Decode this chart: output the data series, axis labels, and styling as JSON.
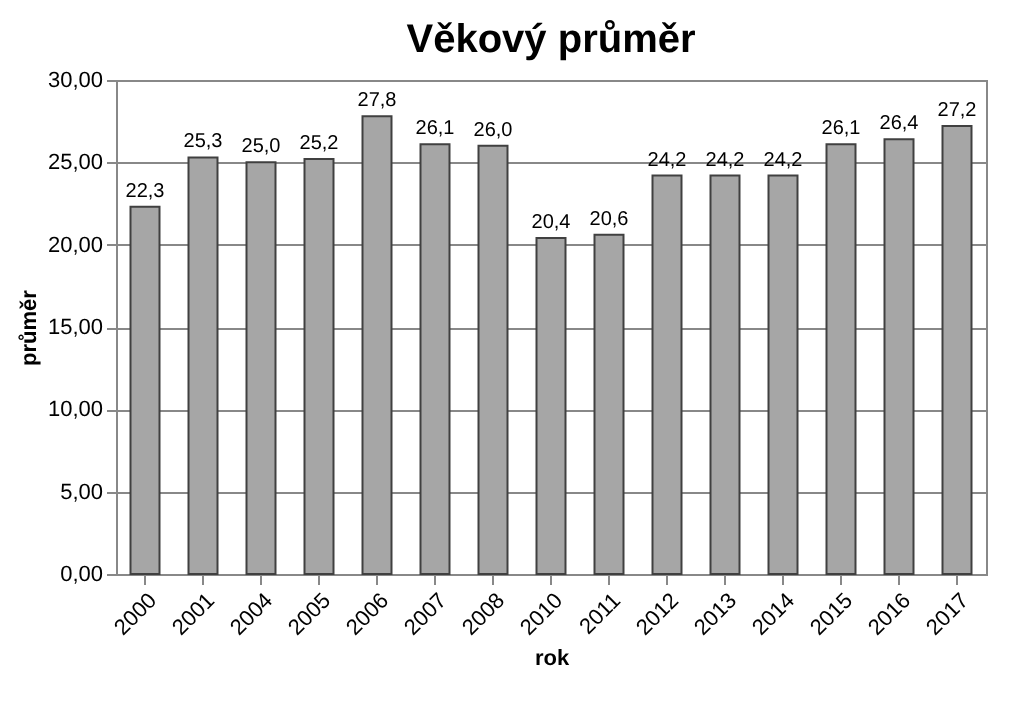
{
  "chart_data": {
    "type": "bar",
    "title": "Věkový průměr",
    "xlabel": "rok",
    "ylabel": "průměr",
    "categories": [
      "2000",
      "2001",
      "2004",
      "2005",
      "2006",
      "2007",
      "2008",
      "2010",
      "2011",
      "2012",
      "2013",
      "2014",
      "2015",
      "2016",
      "2017"
    ],
    "values": [
      22.3,
      25.3,
      25.0,
      25.2,
      27.8,
      26.1,
      26.0,
      20.4,
      20.6,
      24.2,
      24.2,
      24.2,
      26.1,
      26.4,
      27.2
    ],
    "value_labels": [
      "22,3",
      "25,3",
      "25,0",
      "25,2",
      "27,8",
      "26,1",
      "26,0",
      "20,4",
      "20,6",
      "24,2",
      "24,2",
      "24,2",
      "26,1",
      "26,4",
      "27,2"
    ],
    "color": "#a6a6a6",
    "ylim": [
      0,
      30
    ],
    "yticks": [
      {
        "value": 0,
        "label": "0,00"
      },
      {
        "value": 5,
        "label": "5,00"
      },
      {
        "value": 10,
        "label": "10,00"
      },
      {
        "value": 15,
        "label": "15,00"
      },
      {
        "value": 20,
        "label": "20,00"
      },
      {
        "value": 25,
        "label": "25,00"
      },
      {
        "value": 30,
        "label": "30,00"
      }
    ],
    "grid": "y"
  }
}
